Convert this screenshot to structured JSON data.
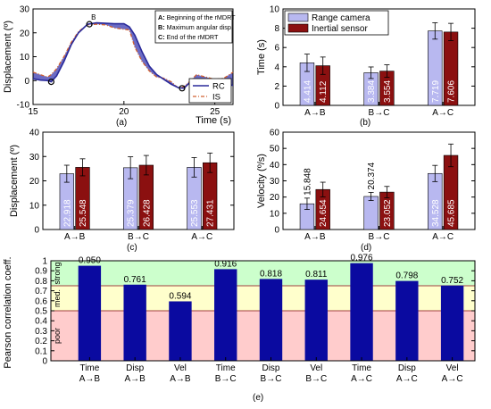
{
  "colors": {
    "rc": "#2a2a9a",
    "is": "#d06030",
    "rc_bar": "#b8b8f0",
    "is_bar": "#8b1010",
    "pearson_bar": "#0a0aa0",
    "strong_band": "#ccffcc",
    "medium_band": "#ffffcc",
    "poor_band": "#ffcccc",
    "band_line": "#a04040",
    "fill_between": "#3a3ab0"
  },
  "panel_labels": {
    "a": "(a)",
    "b": "(b)",
    "c": "(c)",
    "d": "(d)",
    "e": "(e)"
  },
  "chart_data": [
    {
      "id": "a",
      "type": "line",
      "xlabel": "Time (s)",
      "ylabel": "Displacement (º)",
      "xlim": [
        15,
        26
      ],
      "ylim": [
        -10,
        30
      ],
      "xticks": [
        "15",
        "20",
        "25"
      ],
      "yticks": [
        "-10",
        "0",
        "10",
        "20",
        "30"
      ],
      "series": [
        {
          "name": "RC",
          "x": [
            15.0,
            15.4,
            15.8,
            16.0,
            16.3,
            16.7,
            17.1,
            17.5,
            18.0,
            18.5,
            19.0,
            19.5,
            20.0,
            20.3,
            20.6,
            21.0,
            21.4,
            21.8,
            22.2,
            22.6,
            23.0,
            23.3,
            23.6,
            24.0,
            24.5,
            25.0,
            25.5,
            26.0
          ],
          "y": [
            0.8,
            0.2,
            0.0,
            -0.5,
            2,
            8,
            15,
            20,
            23.6,
            24.2,
            24.0,
            23.8,
            23.8,
            22.5,
            19,
            12,
            6,
            2.5,
            0.5,
            -1.5,
            -3.0,
            -3.2,
            -1,
            0.2,
            -1.5,
            -0.8,
            -1.5,
            -2
          ]
        },
        {
          "name": "IS",
          "x": [
            15.0,
            15.4,
            15.8,
            16.0,
            16.3,
            16.7,
            17.1,
            17.5,
            18.0,
            18.5,
            19.0,
            19.5,
            20.0,
            20.3,
            20.6,
            21.0,
            21.4,
            21.8,
            22.2,
            22.6,
            23.0,
            23.3,
            23.6,
            24.0,
            24.5,
            25.0,
            25.5,
            26.0
          ],
          "y": [
            3.5,
            2.5,
            1.5,
            2.5,
            5,
            10,
            16,
            20.5,
            23.4,
            23.6,
            23.3,
            22.0,
            21.5,
            21.2,
            14,
            8,
            4,
            1.5,
            1.0,
            -0.5,
            -3.2,
            -2.5,
            -0.5,
            2.5,
            1.5,
            0.5,
            1.0,
            3.5
          ]
        }
      ],
      "markers": [
        {
          "label": "",
          "x": 16.0,
          "y": -0.5
        },
        {
          "label": "B",
          "x": 18.1,
          "y": 23.6
        },
        {
          "label": "",
          "x": 23.2,
          "y": -3.2
        }
      ],
      "annotation_lines": [
        {
          "key": "A:",
          "text": " Beginning of the rMDRT"
        },
        {
          "key": "B:",
          "text": " Maximum angular disp."
        },
        {
          "key": "C:",
          "text": " End of the rMDRT"
        }
      ],
      "legend_position": "bottom-right"
    },
    {
      "id": "b",
      "type": "bar",
      "ylabel": "Time (s)",
      "ylim": [
        0,
        10
      ],
      "yticks": [
        "0",
        "2",
        "4",
        "6",
        "8",
        "10"
      ],
      "categories": [
        "A→B",
        "B→C",
        "A→C"
      ],
      "series": [
        {
          "name": "Range camera",
          "values": [
            4.414,
            3.384,
            7.719
          ],
          "errors": [
            0.9,
            0.6,
            0.85
          ],
          "labels": [
            "4.414",
            "3.384",
            "7.719"
          ]
        },
        {
          "name": "Inertial sensor",
          "values": [
            4.112,
            3.554,
            7.606
          ],
          "errors": [
            0.9,
            0.65,
            0.9
          ],
          "labels": [
            "4.112",
            "3.554",
            "7.606"
          ]
        }
      ],
      "legend_position": "top-left"
    },
    {
      "id": "c",
      "type": "bar",
      "ylabel": "Displacement (º)",
      "ylim": [
        0,
        40
      ],
      "yticks": [
        "0",
        "10",
        "20",
        "30",
        "40"
      ],
      "categories": [
        "A→B",
        "B→C",
        "A→C"
      ],
      "series": [
        {
          "name": "Range camera",
          "values": [
            22.918,
            25.379,
            25.553
          ],
          "errors": [
            3.5,
            4.5,
            4.0
          ],
          "labels": [
            "22.918",
            "25.379",
            "25.553"
          ]
        },
        {
          "name": "Inertial sensor",
          "values": [
            25.548,
            26.428,
            27.431
          ],
          "errors": [
            3.5,
            4.0,
            4.0
          ],
          "labels": [
            "25.548",
            "26.428",
            "27.431"
          ]
        }
      ]
    },
    {
      "id": "d",
      "type": "bar",
      "ylabel": "Velocity (º/s)",
      "ylim": [
        0,
        60
      ],
      "yticks": [
        "0",
        "10",
        "20",
        "30",
        "40",
        "50",
        "60"
      ],
      "categories": [
        "A→B",
        "B→C",
        "A→C"
      ],
      "series": [
        {
          "name": "Range camera",
          "values": [
            15.848,
            20.374,
            34.528
          ],
          "errors": [
            3.5,
            2.5,
            5.0
          ],
          "labels": [
            "15.848",
            "20.374",
            "34.528"
          ]
        },
        {
          "name": "Inertial sensor",
          "values": [
            24.654,
            23.052,
            45.685
          ],
          "errors": [
            4.5,
            3.5,
            7.0
          ],
          "labels": [
            "24.654",
            "23.052",
            "45.685"
          ]
        }
      ]
    },
    {
      "id": "e",
      "type": "bar",
      "ylabel": "Pearson correlation coeff.",
      "ylim": [
        0,
        1
      ],
      "yticks": [
        "0",
        "0.1",
        "0.2",
        "0.3",
        "0.4",
        "0.5",
        "0.6",
        "0.7",
        "0.8",
        "0.9",
        "1"
      ],
      "categories": [
        {
          "line1": "Time",
          "line2": "A→B"
        },
        {
          "line1": "Disp",
          "line2": "A→B"
        },
        {
          "line1": "Vel",
          "line2": "A→B"
        },
        {
          "line1": "Time",
          "line2": "B→C"
        },
        {
          "line1": "Disp",
          "line2": "B→C"
        },
        {
          "line1": "Vel",
          "line2": "B→C"
        },
        {
          "line1": "Time",
          "line2": "A→C"
        },
        {
          "line1": "Disp",
          "line2": "A→C"
        },
        {
          "line1": "Vel",
          "line2": "A→C"
        }
      ],
      "values": [
        0.95,
        0.761,
        0.594,
        0.916,
        0.818,
        0.811,
        0.976,
        0.798,
        0.752
      ],
      "labels": [
        "0.950",
        "0.761",
        "0.594",
        "0.916",
        "0.818",
        "0.811",
        "0.976",
        "0.798",
        "0.752"
      ],
      "bands": [
        {
          "label": "strong",
          "from": 0.75,
          "to": 1.0
        },
        {
          "label": "med.",
          "from": 0.5,
          "to": 0.75
        },
        {
          "label": "poor",
          "from": 0.0,
          "to": 0.5
        }
      ]
    }
  ]
}
